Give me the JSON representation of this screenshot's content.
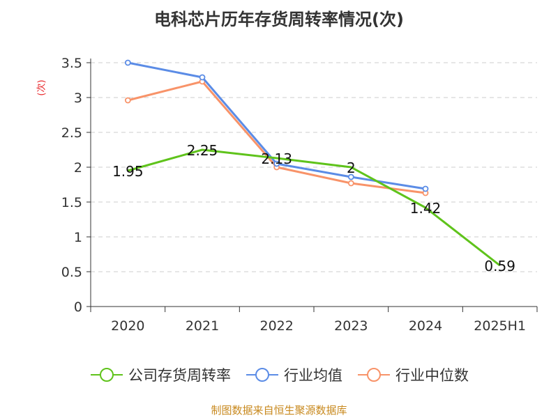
{
  "chart_data": {
    "type": "line",
    "title": "电科芯片历年存货周转率情况(次)",
    "ylabel": "(次)",
    "xlabel": "",
    "categories": [
      "2020",
      "2021",
      "2022",
      "2023",
      "2024",
      "2025H1"
    ],
    "ylim": [
      0,
      3.5
    ],
    "yticks": [
      "0",
      "0.5",
      "1",
      "1.5",
      "2",
      "2.5",
      "3",
      "3.5"
    ],
    "grid": true,
    "legend_position": "bottom",
    "series": [
      {
        "name": "公司存货周转率",
        "color": "#5fc31b",
        "values": [
          1.95,
          2.25,
          2.13,
          2,
          1.42,
          0.59
        ],
        "labels": [
          "1.95",
          "2.25",
          "2.13",
          "2",
          "1.42",
          "0.59"
        ]
      },
      {
        "name": "行业均值",
        "color": "#5b8ce6",
        "values": [
          3.5,
          3.29,
          2.05,
          1.86,
          1.69,
          null
        ]
      },
      {
        "name": "行业中位数",
        "color": "#f89369",
        "values": [
          2.96,
          3.23,
          2.0,
          1.77,
          1.63,
          null
        ]
      }
    ]
  },
  "source": "制图数据来自恒生聚源数据库"
}
